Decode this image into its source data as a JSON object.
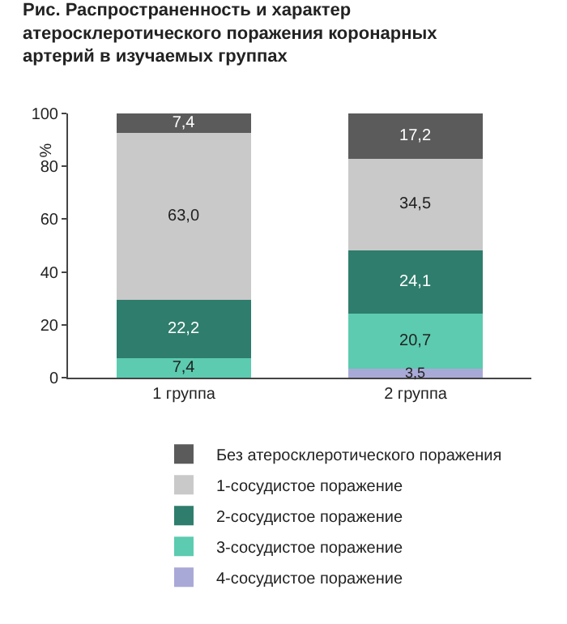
{
  "chart_data": {
    "type": "bar",
    "stacked": true,
    "title": "Рис. Распространенность и характер атеросклеротического поражения коронарных артерий в изучаемых группах",
    "ylabel": "%",
    "categories": [
      "1 группа",
      "2 группа"
    ],
    "series": [
      {
        "name": "4-сосудистое поражение",
        "color": "#a9a9d8",
        "values": [
          null,
          3.5
        ],
        "value_labels": [
          null,
          "3,5"
        ]
      },
      {
        "name": "3-сосудистое поражение",
        "color": "#5ccbb0",
        "values": [
          7.4,
          20.7
        ],
        "value_labels": [
          "7,4",
          "20,7"
        ]
      },
      {
        "name": "2-сосудистое поражение",
        "color": "#2f7d6c",
        "values": [
          22.2,
          24.1
        ],
        "value_labels": [
          "22,2",
          "24,1"
        ]
      },
      {
        "name": "1-сосудистое поражение",
        "color": "#c9c9c9",
        "values": [
          63.0,
          34.5
        ],
        "value_labels": [
          "63,0",
          "34,5"
        ]
      },
      {
        "name": "Без атеросклеротического поражения",
        "color": "#5b5b5b",
        "values": [
          7.4,
          17.2
        ],
        "value_labels": [
          "7,4",
          "17,2"
        ]
      }
    ],
    "ylim": [
      0,
      100
    ],
    "yticks": [
      0,
      20,
      40,
      60,
      80,
      100
    ],
    "grid": false,
    "legend": "bottom"
  }
}
